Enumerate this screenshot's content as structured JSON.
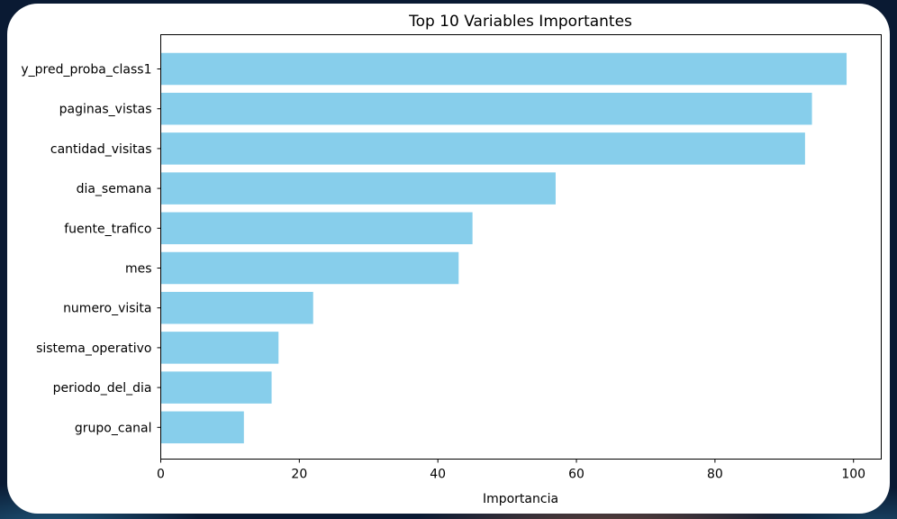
{
  "chart_data": {
    "type": "bar",
    "orientation": "horizontal",
    "title": "Top 10 Variables Importantes",
    "xlabel": "Importancia",
    "ylabel": "",
    "categories": [
      "y_pred_proba_class1",
      "paginas_vistas",
      "cantidad_visitas",
      "dia_semana",
      "fuente_trafico",
      "mes",
      "numero_visita",
      "sistema_operativo",
      "periodo_del_dia",
      "grupo_canal"
    ],
    "values": [
      99,
      94,
      93,
      57,
      45,
      43,
      22,
      17,
      16,
      12
    ],
    "xlim": [
      0,
      104
    ],
    "xticks": [
      0,
      20,
      40,
      60,
      80,
      100
    ],
    "grid": false,
    "bar_color": "#87ceeb"
  }
}
